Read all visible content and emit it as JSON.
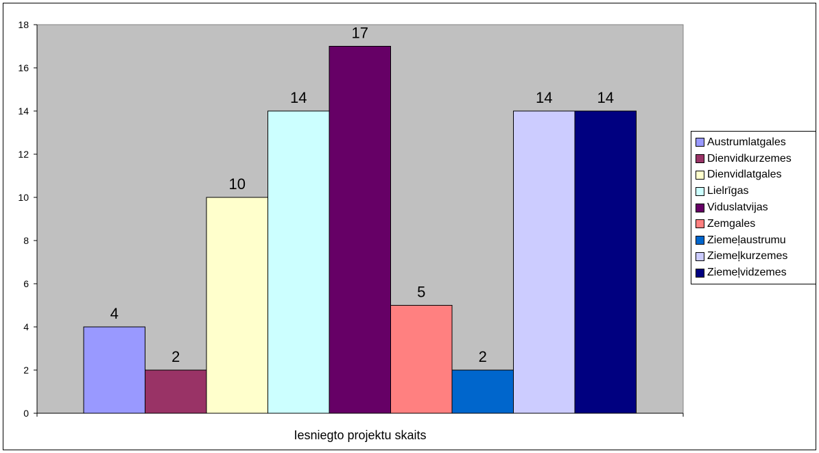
{
  "chart_data": {
    "type": "bar",
    "title": "",
    "xlabel": "Iesniegto projektu skaits",
    "ylabel": "",
    "ylim": [
      0,
      18
    ],
    "yticks": [
      0,
      2,
      4,
      6,
      8,
      10,
      12,
      14,
      16,
      18
    ],
    "grid": false,
    "legend_position": "right",
    "plot_background": "#c0c0c0",
    "series": [
      {
        "name": "Austrumlatgales",
        "value": 4,
        "color": "#9999ff"
      },
      {
        "name": "Dienvidkurzemes",
        "value": 2,
        "color": "#993366"
      },
      {
        "name": "Dienvidlatgales",
        "value": 10,
        "color": "#ffffcc"
      },
      {
        "name": "Lielrīgas",
        "value": 14,
        "color": "#ccffff"
      },
      {
        "name": "Viduslatvijas",
        "value": 17,
        "color": "#660066"
      },
      {
        "name": "Zemgales",
        "value": 5,
        "color": "#ff8080"
      },
      {
        "name": "Ziemeļaustrumu",
        "value": 2,
        "color": "#0066cc"
      },
      {
        "name": "Ziemeļkurzemes",
        "value": 14,
        "color": "#ccccff"
      },
      {
        "name": "Ziemeļvidzemes",
        "value": 14,
        "color": "#000080"
      }
    ]
  }
}
